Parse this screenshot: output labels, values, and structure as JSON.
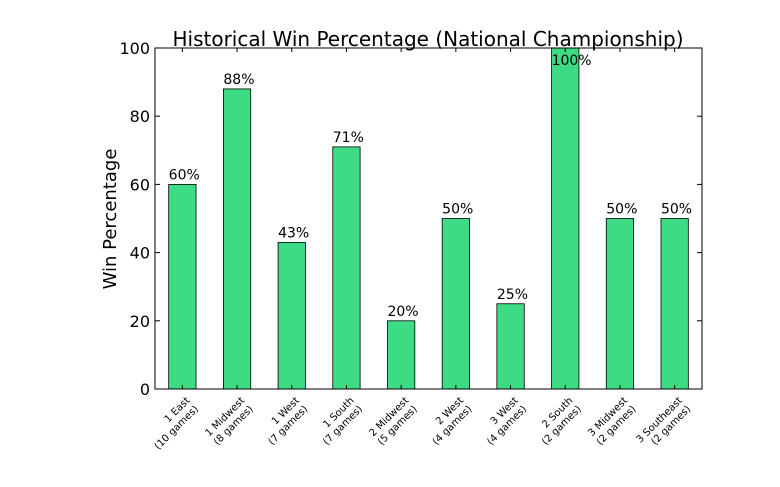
{
  "chart_data": {
    "type": "bar",
    "title": "Historical Win Percentage (National Championship)",
    "xlabel": "",
    "ylabel": "Win Percentage",
    "ylim": [
      0,
      100
    ],
    "yticks": [
      0,
      20,
      40,
      60,
      80,
      100
    ],
    "grid": false,
    "bar_color": "#3ddc84",
    "categories": [
      [
        "1 East",
        "(10 games)"
      ],
      [
        "1 Midwest",
        "(8 games)"
      ],
      [
        "1 West",
        "(7 games)"
      ],
      [
        "1 South",
        "(7 games)"
      ],
      [
        "2 Midwest",
        "(5 games)"
      ],
      [
        "2 West",
        "(4 games)"
      ],
      [
        "3 West",
        "(4 games)"
      ],
      [
        "2 South",
        "(2 games)"
      ],
      [
        "3 Midwest",
        "(2 games)"
      ],
      [
        "3 Southeast",
        "(2 games)"
      ]
    ],
    "values": [
      60,
      88,
      43,
      71,
      20,
      50,
      25,
      100,
      50,
      50
    ],
    "data_labels": [
      "60%",
      "88%",
      "43%",
      "71%",
      "20%",
      "50%",
      "25%",
      "100%",
      "50%",
      "50%"
    ]
  }
}
